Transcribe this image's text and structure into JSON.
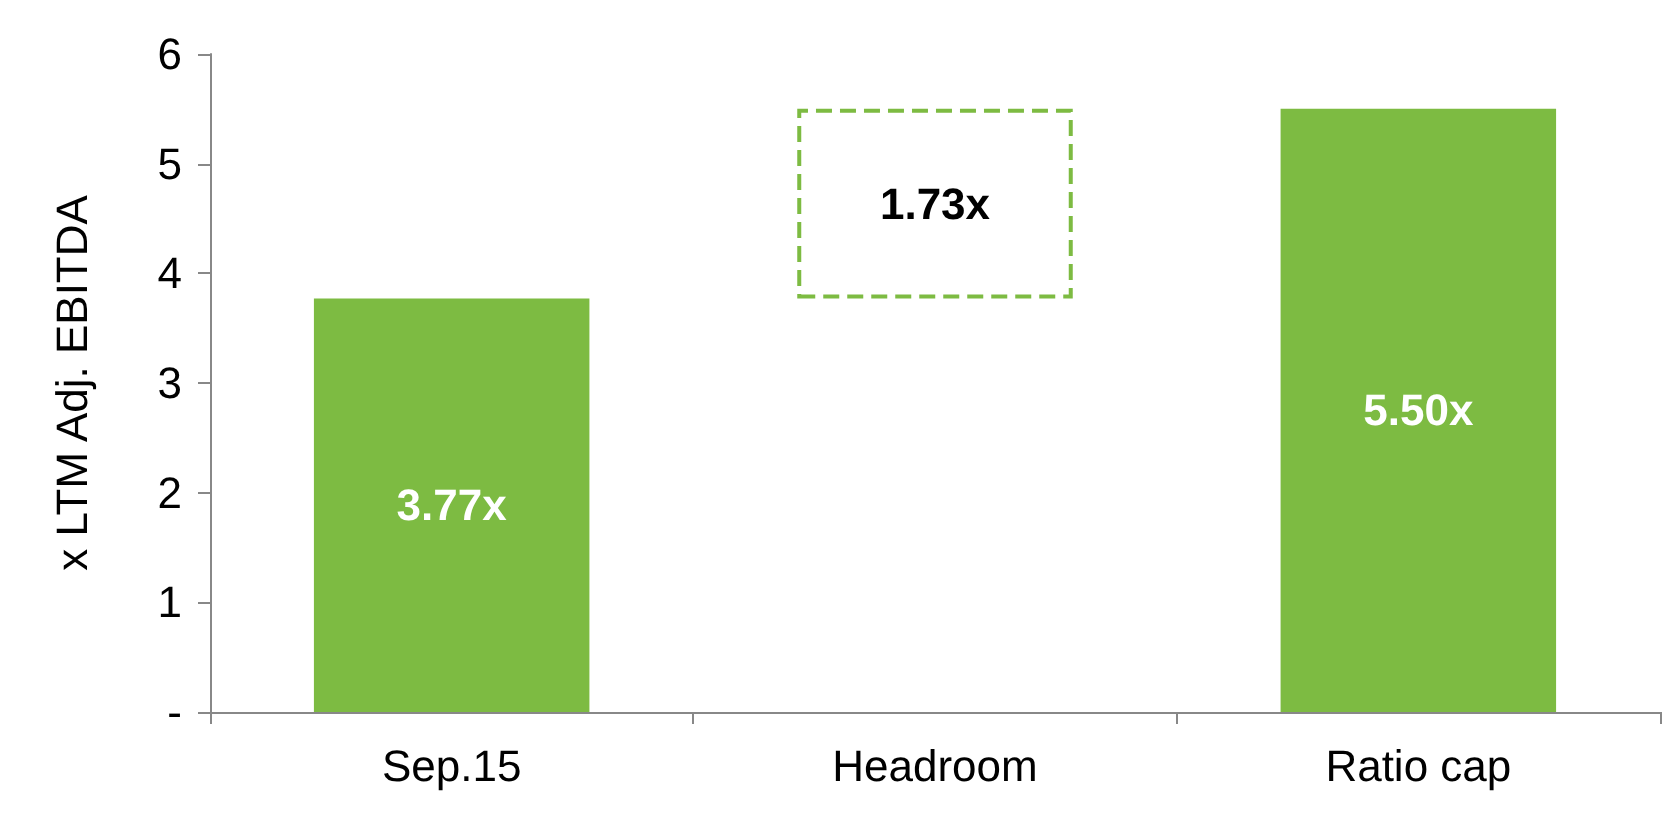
{
  "chart_data": {
    "type": "bar",
    "ylabel": "x LTM Adj. EBITDA",
    "categories": [
      "Sep.15",
      "Headroom",
      "Ratio cap"
    ],
    "series": [
      {
        "color": "#7dbb42",
        "values": [
          3.77,
          null,
          5.5
        ],
        "base": [
          0,
          null,
          0
        ],
        "value_labels": [
          "3.77x",
          null,
          "5.50x"
        ]
      },
      {
        "color": "#7dbb42",
        "values": [
          null,
          1.73,
          null
        ],
        "base": [
          null,
          3.77,
          null
        ],
        "value_labels": [
          null,
          "1.73x",
          null
        ],
        "line_style": "dashed"
      }
    ],
    "ylim": [
      0,
      6
    ],
    "yticks": [
      {
        "value": 0,
        "label": "-"
      },
      1,
      2,
      3,
      4,
      5,
      6
    ],
    "grid": false
  }
}
